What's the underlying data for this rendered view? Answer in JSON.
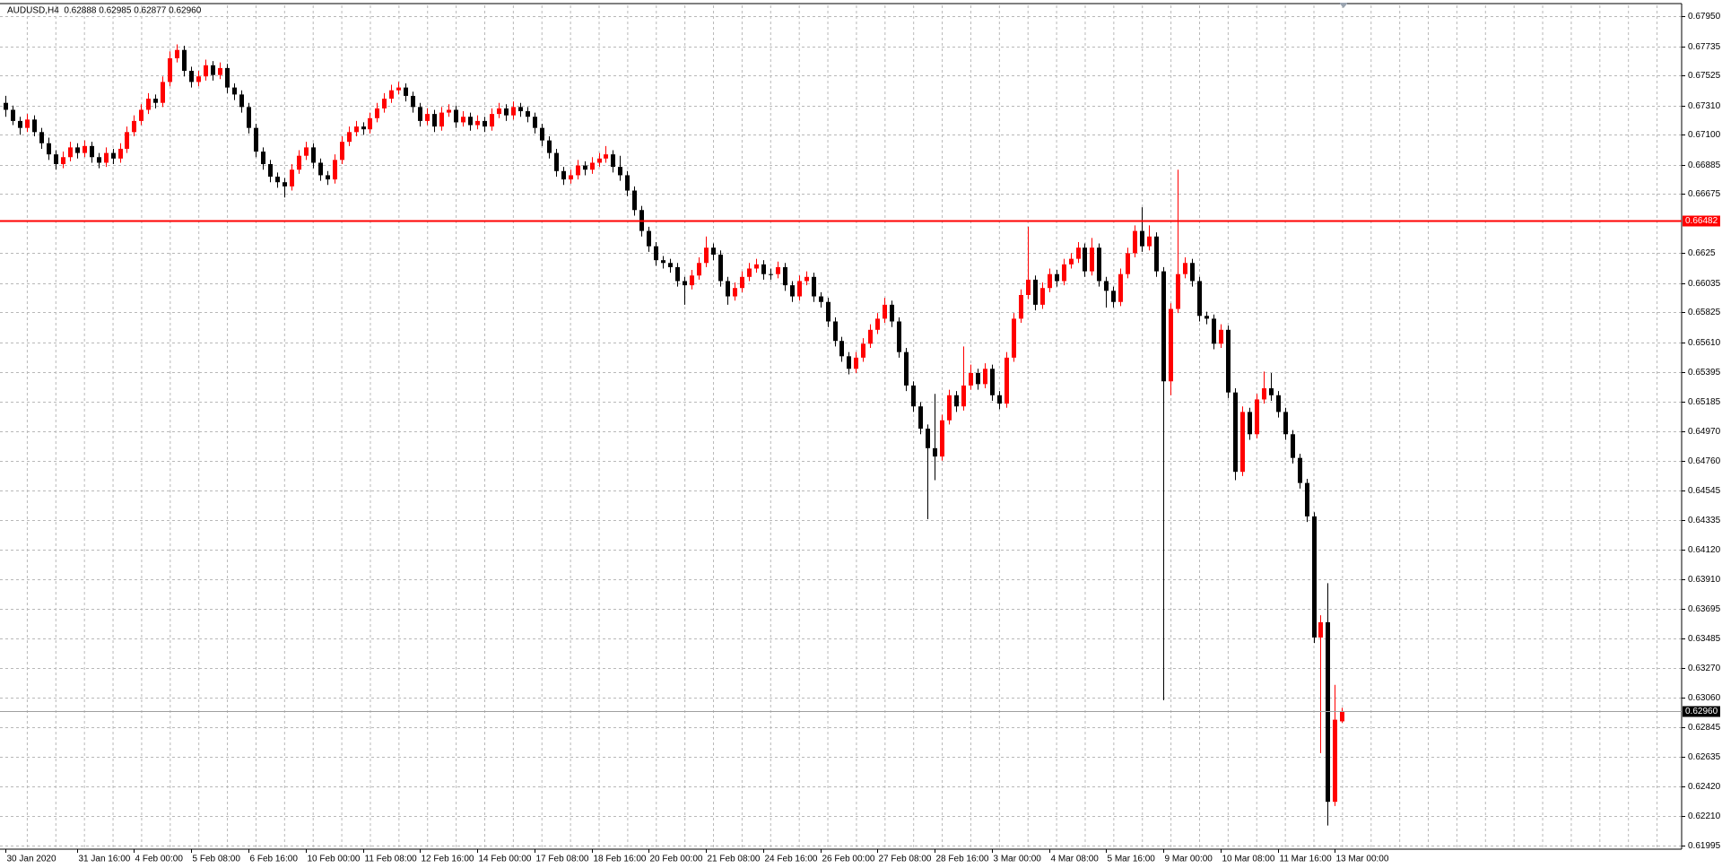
{
  "chart_data": {
    "type": "candlestick",
    "title": "AUDUSD,H4  0.62888 0.62985 0.62877 0.62960",
    "categories": [
      "30 Jan 2020",
      null,
      null,
      null,
      null,
      null,
      null,
      null,
      null,
      null,
      "31 Jan 16:00",
      null,
      null,
      null,
      null,
      null,
      null,
      null,
      "4 Feb 00:00",
      null,
      null,
      null,
      null,
      null,
      null,
      null,
      "5 Feb 08:00",
      null,
      null,
      null,
      null,
      null,
      null,
      null,
      "6 Feb 16:00",
      null,
      null,
      null,
      null,
      null,
      null,
      null,
      "10 Feb 00:00",
      null,
      null,
      null,
      null,
      null,
      null,
      null,
      "11 Feb 08:00",
      null,
      null,
      null,
      null,
      null,
      null,
      null,
      "12 Feb 16:00",
      null,
      null,
      null,
      null,
      null,
      null,
      null,
      "14 Feb 00:00",
      null,
      null,
      null,
      null,
      null,
      null,
      null,
      "17 Feb 08:00",
      null,
      null,
      null,
      null,
      null,
      null,
      null,
      "18 Feb 16:00",
      null,
      null,
      null,
      null,
      null,
      null,
      null,
      "20 Feb 00:00",
      null,
      null,
      null,
      null,
      null,
      null,
      null,
      "21 Feb 08:00",
      null,
      null,
      null,
      null,
      null,
      null,
      null,
      "24 Feb 16:00",
      null,
      null,
      null,
      null,
      null,
      null,
      null,
      "26 Feb 00:00",
      null,
      null,
      null,
      null,
      null,
      null,
      null,
      "27 Feb 08:00",
      null,
      null,
      null,
      null,
      null,
      null,
      null,
      "28 Feb 16:00",
      null,
      null,
      null,
      null,
      null,
      null,
      null,
      "3 Mar 00:00",
      null,
      null,
      null,
      null,
      null,
      null,
      null,
      "4 Mar 08:00",
      null,
      null,
      null,
      null,
      null,
      null,
      null,
      "5 Mar 16:00",
      null,
      null,
      null,
      null,
      null,
      null,
      null,
      "9 Mar 00:00",
      null,
      null,
      null,
      null,
      null,
      null,
      null,
      "10 Mar 08:00",
      null,
      null,
      null,
      null,
      null,
      null,
      null,
      "11 Mar 16:00",
      null,
      null,
      null,
      null,
      null,
      null,
      null,
      "13 Mar 00:00",
      null
    ],
    "candles": [
      [
        0.6733,
        0.6738,
        0.6723,
        0.6728
      ],
      [
        0.6728,
        0.6731,
        0.6717,
        0.672
      ],
      [
        0.672,
        0.6723,
        0.671,
        0.6715
      ],
      [
        0.6715,
        0.6725,
        0.6712,
        0.6721
      ],
      [
        0.6721,
        0.6724,
        0.6709,
        0.6712
      ],
      [
        0.6712,
        0.6715,
        0.67,
        0.6704
      ],
      [
        0.6704,
        0.6708,
        0.6692,
        0.6696
      ],
      [
        0.6696,
        0.6699,
        0.6685,
        0.6689
      ],
      [
        0.6689,
        0.6698,
        0.6686,
        0.6694
      ],
      [
        0.6694,
        0.6705,
        0.6691,
        0.6701
      ],
      [
        0.6701,
        0.6704,
        0.6693,
        0.6697
      ],
      [
        0.6697,
        0.6706,
        0.6694,
        0.6702
      ],
      [
        0.6702,
        0.6705,
        0.669,
        0.6694
      ],
      [
        0.6694,
        0.6697,
        0.6686,
        0.669
      ],
      [
        0.669,
        0.6701,
        0.6687,
        0.6697
      ],
      [
        0.6697,
        0.67,
        0.6689,
        0.6693
      ],
      [
        0.6693,
        0.6704,
        0.669,
        0.67
      ],
      [
        0.67,
        0.6716,
        0.6697,
        0.6712
      ],
      [
        0.6712,
        0.6724,
        0.6709,
        0.672
      ],
      [
        0.672,
        0.6732,
        0.6717,
        0.6728
      ],
      [
        0.6728,
        0.674,
        0.6725,
        0.6736
      ],
      [
        0.6736,
        0.6739,
        0.6729,
        0.6733
      ],
      [
        0.6733,
        0.6752,
        0.673,
        0.6748
      ],
      [
        0.6748,
        0.677,
        0.6745,
        0.6765
      ],
      [
        0.6765,
        0.6775,
        0.6762,
        0.6771
      ],
      [
        0.6771,
        0.6774,
        0.6752,
        0.6756
      ],
      [
        0.6756,
        0.6759,
        0.6744,
        0.6748
      ],
      [
        0.6748,
        0.6756,
        0.6745,
        0.6752
      ],
      [
        0.6752,
        0.6764,
        0.6749,
        0.676
      ],
      [
        0.676,
        0.6763,
        0.6749,
        0.6753
      ],
      [
        0.6753,
        0.6762,
        0.675,
        0.6758
      ],
      [
        0.6758,
        0.6761,
        0.674,
        0.6744
      ],
      [
        0.6744,
        0.6747,
        0.6735,
        0.6739
      ],
      [
        0.6739,
        0.6742,
        0.6726,
        0.673
      ],
      [
        0.673,
        0.6733,
        0.6711,
        0.6715
      ],
      [
        0.6715,
        0.6718,
        0.6694,
        0.6698
      ],
      [
        0.6698,
        0.6701,
        0.6685,
        0.6689
      ],
      [
        0.6689,
        0.6692,
        0.6676,
        0.668
      ],
      [
        0.668,
        0.6683,
        0.6672,
        0.6676
      ],
      [
        0.6676,
        0.6679,
        0.6665,
        0.6673
      ],
      [
        0.6673,
        0.6689,
        0.667,
        0.6685
      ],
      [
        0.6685,
        0.6699,
        0.6682,
        0.6695
      ],
      [
        0.6695,
        0.6705,
        0.6692,
        0.6701
      ],
      [
        0.6701,
        0.6704,
        0.6686,
        0.669
      ],
      [
        0.669,
        0.6693,
        0.6677,
        0.6681
      ],
      [
        0.6681,
        0.6684,
        0.6674,
        0.6678
      ],
      [
        0.6678,
        0.6696,
        0.6675,
        0.6692
      ],
      [
        0.6692,
        0.6709,
        0.6689,
        0.6705
      ],
      [
        0.6705,
        0.6716,
        0.6702,
        0.6712
      ],
      [
        0.6712,
        0.672,
        0.6709,
        0.6716
      ],
      [
        0.6716,
        0.6719,
        0.671,
        0.6714
      ],
      [
        0.6714,
        0.6726,
        0.6711,
        0.6722
      ],
      [
        0.6722,
        0.6733,
        0.6719,
        0.6729
      ],
      [
        0.6729,
        0.674,
        0.6726,
        0.6736
      ],
      [
        0.6736,
        0.6746,
        0.6733,
        0.6742
      ],
      [
        0.6742,
        0.6748,
        0.6739,
        0.6744
      ],
      [
        0.6744,
        0.6747,
        0.6734,
        0.6738
      ],
      [
        0.6738,
        0.6741,
        0.6726,
        0.673
      ],
      [
        0.673,
        0.6733,
        0.6716,
        0.672
      ],
      [
        0.672,
        0.6729,
        0.6717,
        0.6725
      ],
      [
        0.6725,
        0.6728,
        0.6712,
        0.6716
      ],
      [
        0.6716,
        0.673,
        0.6713,
        0.6726
      ],
      [
        0.6726,
        0.6732,
        0.6723,
        0.6728
      ],
      [
        0.6728,
        0.6731,
        0.6715,
        0.6719
      ],
      [
        0.6719,
        0.6727,
        0.6716,
        0.6723
      ],
      [
        0.6723,
        0.6726,
        0.6713,
        0.6717
      ],
      [
        0.6717,
        0.6724,
        0.6714,
        0.672
      ],
      [
        0.672,
        0.6723,
        0.6712,
        0.6716
      ],
      [
        0.6716,
        0.6729,
        0.6713,
        0.6725
      ],
      [
        0.6725,
        0.6733,
        0.6722,
        0.6729
      ],
      [
        0.6729,
        0.6732,
        0.672,
        0.6724
      ],
      [
        0.6724,
        0.6734,
        0.6721,
        0.673
      ],
      [
        0.673,
        0.6733,
        0.6723,
        0.6727
      ],
      [
        0.6727,
        0.673,
        0.6719,
        0.6723
      ],
      [
        0.6723,
        0.6726,
        0.6711,
        0.6715
      ],
      [
        0.6715,
        0.6718,
        0.6702,
        0.6706
      ],
      [
        0.6706,
        0.6709,
        0.6693,
        0.6697
      ],
      [
        0.6697,
        0.67,
        0.668,
        0.6684
      ],
      [
        0.6684,
        0.6687,
        0.6674,
        0.6678
      ],
      [
        0.6678,
        0.6685,
        0.6675,
        0.6681
      ],
      [
        0.6681,
        0.6692,
        0.6678,
        0.6688
      ],
      [
        0.6688,
        0.6691,
        0.6681,
        0.6685
      ],
      [
        0.6685,
        0.6694,
        0.6682,
        0.669
      ],
      [
        0.669,
        0.6697,
        0.6687,
        0.6693
      ],
      [
        0.6693,
        0.6702,
        0.669,
        0.6696
      ],
      [
        0.6696,
        0.6699,
        0.6683,
        0.6687
      ],
      [
        0.6687,
        0.6695,
        0.6677,
        0.6681
      ],
      [
        0.6681,
        0.6684,
        0.6666,
        0.667
      ],
      [
        0.667,
        0.6673,
        0.6652,
        0.6656
      ],
      [
        0.6656,
        0.6659,
        0.6637,
        0.6641
      ],
      [
        0.6641,
        0.6644,
        0.6626,
        0.663
      ],
      [
        0.663,
        0.6633,
        0.6616,
        0.662
      ],
      [
        0.662,
        0.6623,
        0.6614,
        0.6618
      ],
      [
        0.6618,
        0.6621,
        0.6611,
        0.6615
      ],
      [
        0.6615,
        0.6618,
        0.6601,
        0.6605
      ],
      [
        0.6605,
        0.6608,
        0.6588,
        0.6602
      ],
      [
        0.6602,
        0.6613,
        0.6599,
        0.6609
      ],
      [
        0.6609,
        0.6622,
        0.6606,
        0.6618
      ],
      [
        0.6618,
        0.6637,
        0.6615,
        0.6629
      ],
      [
        0.6629,
        0.6632,
        0.662,
        0.6624
      ],
      [
        0.6624,
        0.6627,
        0.6601,
        0.6605
      ],
      [
        0.6605,
        0.6608,
        0.6588,
        0.6594
      ],
      [
        0.6594,
        0.6604,
        0.6591,
        0.66
      ],
      [
        0.66,
        0.6612,
        0.6597,
        0.6608
      ],
      [
        0.6608,
        0.6618,
        0.6605,
        0.6614
      ],
      [
        0.6614,
        0.6621,
        0.6611,
        0.6617
      ],
      [
        0.6617,
        0.662,
        0.6606,
        0.661
      ],
      [
        0.661,
        0.6614,
        0.6606,
        0.661
      ],
      [
        0.661,
        0.6619,
        0.6607,
        0.6615
      ],
      [
        0.6615,
        0.6618,
        0.6598,
        0.6602
      ],
      [
        0.6602,
        0.6605,
        0.659,
        0.6594
      ],
      [
        0.6594,
        0.6609,
        0.6591,
        0.6605
      ],
      [
        0.6605,
        0.6612,
        0.6602,
        0.6608
      ],
      [
        0.6608,
        0.6611,
        0.659,
        0.6594
      ],
      [
        0.6594,
        0.6597,
        0.6586,
        0.659
      ],
      [
        0.659,
        0.6593,
        0.6572,
        0.6576
      ],
      [
        0.6576,
        0.6579,
        0.6558,
        0.6562
      ],
      [
        0.6562,
        0.6565,
        0.6547,
        0.6551
      ],
      [
        0.6551,
        0.6554,
        0.6538,
        0.6542
      ],
      [
        0.6542,
        0.6554,
        0.6539,
        0.655
      ],
      [
        0.655,
        0.6564,
        0.6547,
        0.656
      ],
      [
        0.656,
        0.6574,
        0.6557,
        0.657
      ],
      [
        0.657,
        0.6582,
        0.6567,
        0.6578
      ],
      [
        0.6578,
        0.6593,
        0.6575,
        0.6588
      ],
      [
        0.6588,
        0.6591,
        0.6572,
        0.6576
      ],
      [
        0.6576,
        0.6579,
        0.655,
        0.6554
      ],
      [
        0.6554,
        0.6557,
        0.6526,
        0.653
      ],
      [
        0.653,
        0.6533,
        0.6511,
        0.6515
      ],
      [
        0.6515,
        0.6518,
        0.6495,
        0.6499
      ],
      [
        0.6499,
        0.6502,
        0.6434,
        0.6485
      ],
      [
        0.6485,
        0.6524,
        0.6462,
        0.6479
      ],
      [
        0.6479,
        0.6509,
        0.6476,
        0.6505
      ],
      [
        0.6505,
        0.6527,
        0.6502,
        0.6523
      ],
      [
        0.6523,
        0.6526,
        0.6511,
        0.6515
      ],
      [
        0.6515,
        0.6558,
        0.6512,
        0.653
      ],
      [
        0.653,
        0.6545,
        0.6527,
        0.6539
      ],
      [
        0.6539,
        0.6542,
        0.6527,
        0.6531
      ],
      [
        0.6531,
        0.6546,
        0.6528,
        0.6542
      ],
      [
        0.6542,
        0.6545,
        0.6519,
        0.6523
      ],
      [
        0.6523,
        0.6526,
        0.6513,
        0.6517
      ],
      [
        0.6517,
        0.6554,
        0.6514,
        0.655
      ],
      [
        0.655,
        0.6582,
        0.6547,
        0.6578
      ],
      [
        0.6578,
        0.6599,
        0.6575,
        0.6595
      ],
      [
        0.6595,
        0.6644,
        0.6592,
        0.6606
      ],
      [
        0.6606,
        0.6609,
        0.6584,
        0.6588
      ],
      [
        0.6588,
        0.6604,
        0.6585,
        0.66
      ],
      [
        0.66,
        0.6614,
        0.6597,
        0.661
      ],
      [
        0.661,
        0.6613,
        0.6601,
        0.6605
      ],
      [
        0.6605,
        0.6621,
        0.6602,
        0.6617
      ],
      [
        0.6617,
        0.6625,
        0.6614,
        0.6621
      ],
      [
        0.6621,
        0.6633,
        0.6618,
        0.6629
      ],
      [
        0.6629,
        0.6632,
        0.6608,
        0.6612
      ],
      [
        0.6612,
        0.6636,
        0.6609,
        0.6629
      ],
      [
        0.6629,
        0.6632,
        0.6601,
        0.6605
      ],
      [
        0.6605,
        0.6608,
        0.6586,
        0.6598
      ],
      [
        0.6598,
        0.6601,
        0.6586,
        0.659
      ],
      [
        0.659,
        0.6614,
        0.6587,
        0.661
      ],
      [
        0.661,
        0.6629,
        0.6607,
        0.6625
      ],
      [
        0.6625,
        0.6645,
        0.6622,
        0.6641
      ],
      [
        0.6641,
        0.6658,
        0.6626,
        0.663
      ],
      [
        0.663,
        0.6645,
        0.6627,
        0.6637
      ],
      [
        0.6637,
        0.664,
        0.6608,
        0.6612
      ],
      [
        0.6612,
        0.6615,
        0.6304,
        0.6533
      ],
      [
        0.6533,
        0.6589,
        0.6523,
        0.6585
      ],
      [
        0.6585,
        0.6685,
        0.6582,
        0.661
      ],
      [
        0.661,
        0.6622,
        0.6607,
        0.6618
      ],
      [
        0.6618,
        0.6621,
        0.6601,
        0.6605
      ],
      [
        0.6605,
        0.6608,
        0.6576,
        0.658
      ],
      [
        0.658,
        0.6583,
        0.6574,
        0.6578
      ],
      [
        0.6578,
        0.6581,
        0.6556,
        0.656
      ],
      [
        0.656,
        0.6574,
        0.6557,
        0.657
      ],
      [
        0.657,
        0.6573,
        0.6521,
        0.6525
      ],
      [
        0.6525,
        0.6528,
        0.6462,
        0.6468
      ],
      [
        0.6468,
        0.6515,
        0.6465,
        0.6511
      ],
      [
        0.6511,
        0.6514,
        0.6491,
        0.6495
      ],
      [
        0.6495,
        0.6524,
        0.6492,
        0.652
      ],
      [
        0.652,
        0.654,
        0.6517,
        0.6528
      ],
      [
        0.6528,
        0.6539,
        0.6519,
        0.6523
      ],
      [
        0.6523,
        0.6526,
        0.6507,
        0.6511
      ],
      [
        0.6511,
        0.6514,
        0.6491,
        0.6495
      ],
      [
        0.6495,
        0.6498,
        0.6474,
        0.6478
      ],
      [
        0.6478,
        0.6481,
        0.6456,
        0.646
      ],
      [
        0.646,
        0.6463,
        0.6432,
        0.6436
      ],
      [
        0.6436,
        0.6439,
        0.6345,
        0.6349
      ],
      [
        0.6349,
        0.6365,
        0.6266,
        0.636
      ],
      [
        0.636,
        0.6388,
        0.6214,
        0.6231
      ],
      [
        0.6231,
        0.6315,
        0.6228,
        0.629
      ],
      [
        0.62888,
        0.62985,
        0.62877,
        0.6296
      ]
    ],
    "up_color": "#ff0000",
    "down_color": "#000000",
    "ylim": [
      0.6197,
      0.6803
    ],
    "yticks": [
      {
        "value": 0.6795,
        "label": "0.67950"
      },
      0.67735,
      0.67525,
      {
        "value": 0.6731,
        "label": "0.67310"
      },
      {
        "value": 0.671,
        "label": "0.67100"
      },
      0.66885,
      0.66675,
      0.6625,
      0.66035,
      0.65825,
      {
        "value": 0.6561,
        "label": "0.65610"
      },
      0.65395,
      0.65185,
      {
        "value": 0.6497,
        "label": "0.64970"
      },
      {
        "value": 0.6476,
        "label": "0.64760"
      },
      0.64545,
      0.64335,
      {
        "value": 0.6412,
        "label": "0.64120"
      },
      {
        "value": 0.6391,
        "label": "0.63910"
      },
      0.63695,
      0.63485,
      {
        "value": 0.6327,
        "label": "0.63270"
      },
      {
        "value": 0.6306,
        "label": "0.63060"
      },
      0.62845,
      0.62635,
      {
        "value": 0.6242,
        "label": "0.62420"
      },
      {
        "value": 0.6221,
        "label": "0.62210"
      },
      0.61995
    ],
    "grid": true,
    "level_line": {
      "value": 0.66482,
      "color": "#ff0000"
    },
    "bid_line": {
      "value": 0.6296,
      "label": "0.62960",
      "color": "#a0a0a0"
    }
  }
}
